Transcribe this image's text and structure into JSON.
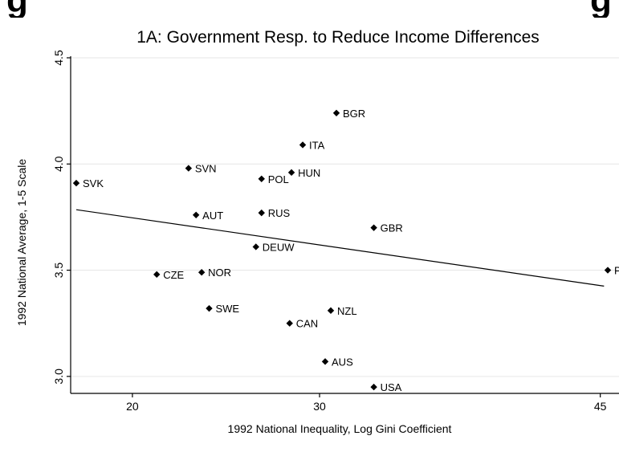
{
  "chart_data": {
    "type": "scatter",
    "title": "1A: Government Resp. to Reduce Income Differences",
    "xlabel": "1992 National Inequality, Log Gini Coefficient",
    "ylabel": "1992 National Average, 1-5 Scale",
    "xlim": [
      16.7,
      46.0
    ],
    "ylim": [
      2.92,
      4.5
    ],
    "xticks": [
      20,
      30,
      45
    ],
    "yticks": [
      3.0,
      3.5,
      4.0,
      4.5
    ],
    "ytick_labels": [
      "3.0",
      "3.5",
      "4.0",
      "4.5"
    ],
    "grid": true,
    "points": [
      {
        "label": "BGR",
        "x": 30.9,
        "y": 4.24
      },
      {
        "label": "ITA",
        "x": 29.1,
        "y": 4.09
      },
      {
        "label": "SVN",
        "x": 23.0,
        "y": 3.98
      },
      {
        "label": "HUN",
        "x": 28.5,
        "y": 3.96
      },
      {
        "label": "POL",
        "x": 26.9,
        "y": 3.93
      },
      {
        "label": "SVK",
        "x": 17.0,
        "y": 3.91
      },
      {
        "label": "AUT",
        "x": 23.4,
        "y": 3.76
      },
      {
        "label": "RUS",
        "x": 26.9,
        "y": 3.77
      },
      {
        "label": "GBR",
        "x": 32.9,
        "y": 3.7
      },
      {
        "label": "DEUW",
        "x": 26.6,
        "y": 3.61
      },
      {
        "label": "PHL",
        "x": 45.4,
        "y": 3.5
      },
      {
        "label": "CZE",
        "x": 21.3,
        "y": 3.48
      },
      {
        "label": "NOR",
        "x": 23.7,
        "y": 3.49
      },
      {
        "label": "SWE",
        "x": 24.1,
        "y": 3.32
      },
      {
        "label": "NZL",
        "x": 30.6,
        "y": 3.31
      },
      {
        "label": "CAN",
        "x": 28.4,
        "y": 3.25
      },
      {
        "label": "AUS",
        "x": 30.3,
        "y": 3.07
      },
      {
        "label": "USA",
        "x": 32.9,
        "y": 2.95
      }
    ],
    "fit_line": {
      "x": [
        17.0,
        45.2
      ],
      "y": [
        3.785,
        3.425
      ]
    },
    "colors": {
      "grid": "#e6e6e6",
      "marker": "#000000",
      "line": "#000000"
    }
  }
}
